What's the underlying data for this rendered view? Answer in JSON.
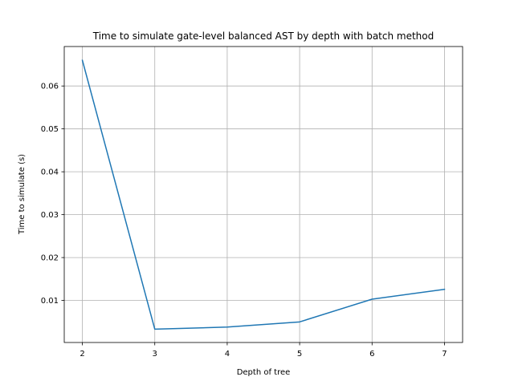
{
  "chart_data": {
    "type": "line",
    "title": "Time to simulate gate-level balanced AST by depth with batch method",
    "xlabel": "Depth of tree",
    "ylabel": "Time to simulate (s)",
    "xlim": [
      1.75,
      7.25
    ],
    "ylim": [
      0.0002,
      0.0692
    ],
    "grid": true,
    "line_color": "#1f77b4",
    "x_ticks": [
      2,
      3,
      4,
      5,
      6,
      7
    ],
    "x_tick_labels": [
      "2",
      "3",
      "4",
      "5",
      "6",
      "7"
    ],
    "y_ticks": [
      0.01,
      0.02,
      0.03,
      0.04,
      0.05,
      0.06
    ],
    "y_tick_labels": [
      "0.01",
      "0.02",
      "0.03",
      "0.04",
      "0.05",
      "0.06"
    ],
    "series": [
      {
        "x": [
          2,
          3,
          4,
          5,
          6,
          7
        ],
        "values": [
          0.066,
          0.0033,
          0.0038,
          0.005,
          0.0103,
          0.0126
        ]
      }
    ]
  }
}
